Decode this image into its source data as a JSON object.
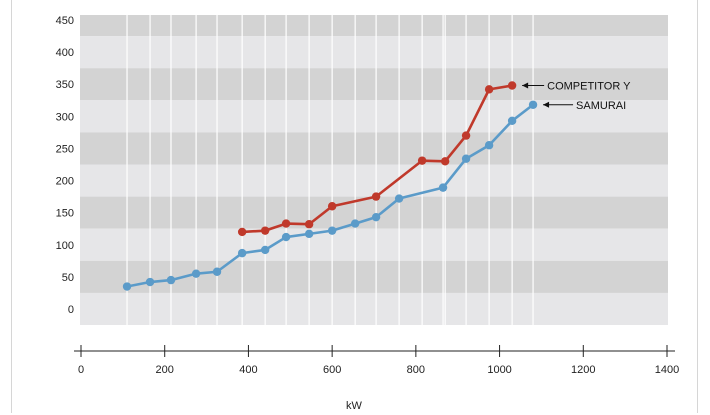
{
  "chart_data": {
    "type": "line",
    "title": "",
    "xlabel": "kW",
    "ylabel": "",
    "xlim": [
      0,
      1400
    ],
    "ylim": [
      0,
      450
    ],
    "x_ticks": [
      0,
      200,
      400,
      600,
      800,
      1000,
      1200,
      1400
    ],
    "y_ticks": [
      0,
      50,
      100,
      150,
      200,
      250,
      300,
      350,
      400,
      450
    ],
    "grid": true,
    "legend": "inline labels at line ends with arrows",
    "series": [
      {
        "name": "COMPETITOR Y",
        "color": "#c0392b",
        "x": [
          385,
          440,
          490,
          545,
          600,
          705,
          815,
          870,
          920,
          975,
          1030
        ],
        "y": [
          120,
          122,
          133,
          132,
          160,
          175,
          231,
          230,
          270,
          342,
          348
        ]
      },
      {
        "name": "SAMURAI",
        "color": "#5b9bc9",
        "x": [
          110,
          165,
          215,
          275,
          325,
          385,
          440,
          490,
          545,
          600,
          655,
          705,
          760,
          865,
          920,
          975,
          1030,
          1080
        ],
        "y": [
          35,
          42,
          45,
          55,
          58,
          87,
          92,
          112,
          117,
          122,
          133,
          143,
          172,
          189,
          234,
          255,
          293,
          318
        ]
      }
    ]
  },
  "colors": {
    "band_dark": "#d3d3d3",
    "band_light": "#e6e6e8",
    "vertical_gridline": "#ffffff"
  }
}
